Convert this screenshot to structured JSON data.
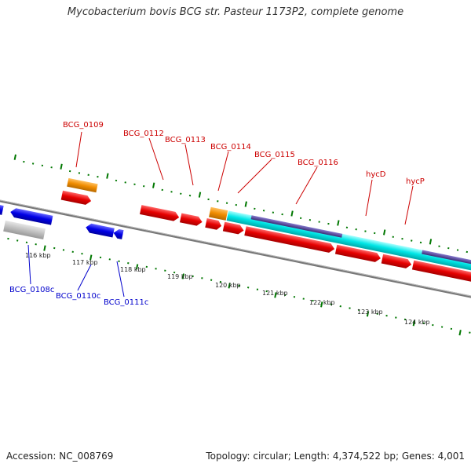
{
  "title": "Mycobacterium bovis BCG str. Pasteur 1173P2, complete genome",
  "footer": {
    "accession": "Accession: NC_008769",
    "summary": "Topology: circular; Length: 4,374,522 bp; Genes: 4,001"
  },
  "colors": {
    "cds_red": "#e60000",
    "cds_blue": "#0000e6",
    "trna_orange": "#f08c00",
    "cyan": "#00e6e6",
    "purple": "#554499",
    "gray": "#bbbbbb",
    "backbone": "#888888",
    "tick_green": "#007700",
    "label_red": "#cc0000",
    "label_blue": "#0000cc"
  },
  "axis": {
    "ticks": [
      "116 kbp",
      "117 kbp",
      "118 kbp",
      "119 kbp",
      "120 kbp",
      "121 kbp",
      "122 kbp",
      "123 kbp",
      "124 kbp"
    ]
  },
  "labels_top": [
    "BCG_0109",
    "BCG_0112",
    "BCG_0113",
    "BCG_0114",
    "BCG_0115",
    "BCG_0116",
    "hycD",
    "hycP"
  ],
  "labels_bottom": [
    "BCG_0108c",
    "BCG_0110c",
    "BCG_0111c"
  ]
}
